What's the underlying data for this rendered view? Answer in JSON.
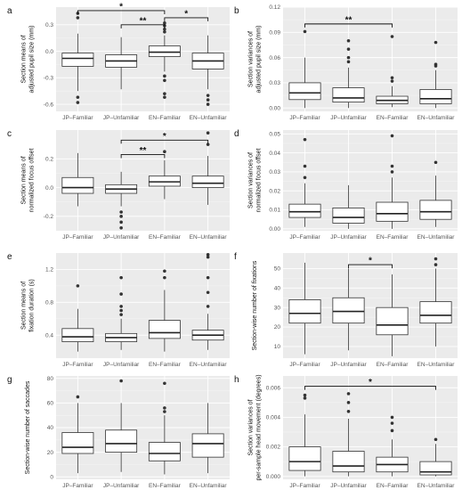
{
  "chart_data": [
    {
      "type": "boxplot",
      "panel_label": "a",
      "ylabel": "Section means of\nadjusted pupil size (mm)",
      "categories": [
        "JP–Familiar",
        "JP–Unfamiliar",
        "EN–Familiar",
        "EN–Unfamiliar"
      ],
      "ylim": [
        -0.68,
        0.5
      ],
      "yticks": [
        -0.6,
        -0.3,
        0.0,
        0.3
      ],
      "ytick_labels": [
        "-0.6",
        "-0.3",
        "0.0",
        "0.3"
      ],
      "boxes": [
        {
          "min": -0.45,
          "q1": -0.17,
          "median": -0.08,
          "q3": -0.02,
          "max": 0.2,
          "outliers": [
            0.38,
            0.43,
            -0.52,
            -0.58
          ]
        },
        {
          "min": -0.43,
          "q1": -0.18,
          "median": -0.11,
          "q3": -0.04,
          "max": 0.16,
          "outliers": []
        },
        {
          "min": -0.23,
          "q1": -0.06,
          "median": -0.01,
          "q3": 0.06,
          "max": 0.18,
          "outliers": [
            0.22,
            0.25,
            0.29,
            0.32,
            -0.28,
            -0.33,
            -0.48,
            -0.52
          ]
        },
        {
          "min": -0.43,
          "q1": -0.2,
          "median": -0.11,
          "q3": -0.02,
          "max": 0.18,
          "outliers": [
            -0.5,
            -0.55,
            -0.6
          ]
        }
      ],
      "significance": [
        {
          "from": 0,
          "to": 2,
          "label": "*",
          "y": 0.46
        },
        {
          "from": 1,
          "to": 2,
          "label": "**",
          "y": 0.3
        },
        {
          "from": 2,
          "to": 3,
          "label": "*",
          "y": 0.38
        }
      ]
    },
    {
      "type": "boxplot",
      "panel_label": "b",
      "ylabel": "Section variances of\nadjusted pupil size (mm)",
      "categories": [
        "JP–Familiar",
        "JP–Unfamiliar",
        "EN–Familiar",
        "EN–Unfamiliar"
      ],
      "ylim": [
        -0.004,
        0.12
      ],
      "yticks": [
        0.0,
        0.03,
        0.06,
        0.09,
        0.12
      ],
      "ytick_labels": [
        "0.00",
        "0.03",
        "0.06",
        "0.09",
        "0.12"
      ],
      "boxes": [
        {
          "min": 0.0,
          "q1": 0.01,
          "median": 0.018,
          "q3": 0.03,
          "max": 0.06,
          "outliers": [
            0.091
          ]
        },
        {
          "min": 0.0,
          "q1": 0.007,
          "median": 0.012,
          "q3": 0.024,
          "max": 0.048,
          "outliers": [
            0.055,
            0.06,
            0.07,
            0.08
          ]
        },
        {
          "min": 0.001,
          "q1": 0.005,
          "median": 0.009,
          "q3": 0.014,
          "max": 0.026,
          "outliers": [
            0.032,
            0.036,
            0.085
          ]
        },
        {
          "min": 0.0,
          "q1": 0.005,
          "median": 0.011,
          "q3": 0.022,
          "max": 0.045,
          "outliers": [
            0.05,
            0.052,
            0.078
          ]
        }
      ],
      "significance": [
        {
          "from": 0,
          "to": 2,
          "label": "**",
          "y": 0.1
        }
      ]
    },
    {
      "type": "boxplot",
      "panel_label": "c",
      "ylabel": "Section means of\nnormalized focus offset",
      "categories": [
        "JP–Familiar",
        "JP–Unfamiliar",
        "EN–Familiar",
        "EN–Unfamiliar"
      ],
      "ylim": [
        -0.3,
        0.4
      ],
      "yticks": [
        -0.2,
        0.0,
        0.2
      ],
      "ytick_labels": [
        "-0.2",
        "0.0",
        "0.2"
      ],
      "boxes": [
        {
          "min": -0.13,
          "q1": -0.04,
          "median": 0.0,
          "q3": 0.07,
          "max": 0.24,
          "outliers": []
        },
        {
          "min": -0.13,
          "q1": -0.04,
          "median": -0.01,
          "q3": 0.02,
          "max": 0.11,
          "outliers": [
            -0.17,
            -0.2,
            -0.24,
            -0.28
          ]
        },
        {
          "min": -0.08,
          "q1": 0.01,
          "median": 0.04,
          "q3": 0.08,
          "max": 0.19,
          "outliers": [
            0.25
          ]
        },
        {
          "min": -0.12,
          "q1": 0.0,
          "median": 0.03,
          "q3": 0.08,
          "max": 0.22,
          "outliers": [
            0.3,
            0.38
          ]
        }
      ],
      "significance": [
        {
          "from": 1,
          "to": 3,
          "label": "*",
          "y": 0.33
        },
        {
          "from": 1,
          "to": 2,
          "label": "**",
          "y": 0.23
        }
      ]
    },
    {
      "type": "boxplot",
      "panel_label": "d",
      "ylabel": "Section variances of\nnormalized focus offset",
      "categories": [
        "JP–Familiar",
        "JP–Unfamiliar",
        "EN–Familiar",
        "EN–Unfamiliar"
      ],
      "ylim": [
        -0.001,
        0.052
      ],
      "yticks": [
        0.0,
        0.01,
        0.02,
        0.03,
        0.04,
        0.05
      ],
      "ytick_labels": [
        "0.00",
        "0.01",
        "0.02",
        "0.03",
        "0.04",
        "0.05"
      ],
      "boxes": [
        {
          "min": 0.001,
          "q1": 0.006,
          "median": 0.009,
          "q3": 0.013,
          "max": 0.024,
          "outliers": [
            0.027,
            0.033,
            0.047
          ]
        },
        {
          "min": 0.0,
          "q1": 0.003,
          "median": 0.006,
          "q3": 0.011,
          "max": 0.023,
          "outliers": []
        },
        {
          "min": 0.0,
          "q1": 0.004,
          "median": 0.008,
          "q3": 0.014,
          "max": 0.027,
          "outliers": [
            0.03,
            0.033,
            0.049
          ]
        },
        {
          "min": 0.001,
          "q1": 0.005,
          "median": 0.009,
          "q3": 0.015,
          "max": 0.028,
          "outliers": [
            0.035
          ]
        }
      ],
      "significance": []
    },
    {
      "type": "boxplot",
      "panel_label": "e",
      "ylabel": "Section means of\nfixation duration (s)",
      "categories": [
        "JP–Familiar",
        "JP–Unfamiliar",
        "EN–Familiar",
        "EN–Unfamiliar"
      ],
      "ylim": [
        0.12,
        1.4
      ],
      "yticks": [
        0.4,
        0.8,
        1.2
      ],
      "ytick_labels": [
        "0.4",
        "0.8",
        "1.2"
      ],
      "boxes": [
        {
          "min": 0.2,
          "q1": 0.32,
          "median": 0.38,
          "q3": 0.48,
          "max": 0.72,
          "outliers": [
            1.0
          ]
        },
        {
          "min": 0.22,
          "q1": 0.32,
          "median": 0.37,
          "q3": 0.42,
          "max": 0.6,
          "outliers": [
            0.65,
            0.7,
            0.75,
            0.9,
            1.1
          ]
        },
        {
          "min": 0.2,
          "q1": 0.36,
          "median": 0.43,
          "q3": 0.58,
          "max": 0.95,
          "outliers": [
            1.1,
            1.18
          ]
        },
        {
          "min": 0.22,
          "q1": 0.34,
          "median": 0.4,
          "q3": 0.46,
          "max": 0.66,
          "outliers": [
            0.75,
            0.92,
            1.1,
            1.35,
            1.38
          ]
        }
      ],
      "significance": []
    },
    {
      "type": "boxplot",
      "panel_label": "f",
      "ylabel": "Section-wise number of fixations",
      "categories": [
        "JP–Familiar",
        "JP–Unfamiliar",
        "EN–Familiar",
        "EN–Unfamiliar"
      ],
      "ylim": [
        4,
        58
      ],
      "yticks": [
        10,
        20,
        30,
        40,
        50
      ],
      "ytick_labels": [
        "10",
        "20",
        "30",
        "40",
        "50"
      ],
      "boxes": [
        {
          "min": 6,
          "q1": 22,
          "median": 27,
          "q3": 34,
          "max": 53,
          "outliers": []
        },
        {
          "min": 8,
          "q1": 22,
          "median": 28,
          "q3": 35,
          "max": 50,
          "outliers": []
        },
        {
          "min": 5,
          "q1": 16,
          "median": 21,
          "q3": 30,
          "max": 47,
          "outliers": []
        },
        {
          "min": 10,
          "q1": 22,
          "median": 26,
          "q3": 33,
          "max": 50,
          "outliers": [
            52,
            55
          ]
        }
      ],
      "significance": [
        {
          "from": 1,
          "to": 2,
          "label": "*",
          "y": 52
        }
      ]
    },
    {
      "type": "boxplot",
      "panel_label": "g",
      "ylabel": "Section-wise number of saccades",
      "categories": [
        "JP–Familiar",
        "JP–Unfamiliar",
        "EN–Familiar",
        "EN–Unfamiliar"
      ],
      "ylim": [
        -2,
        82
      ],
      "yticks": [
        0,
        20,
        40,
        60,
        80
      ],
      "ytick_labels": [
        "0",
        "20",
        "40",
        "60",
        "80"
      ],
      "boxes": [
        {
          "min": 3,
          "q1": 19,
          "median": 24,
          "q3": 36,
          "max": 60,
          "outliers": [
            65
          ]
        },
        {
          "min": 4,
          "q1": 20,
          "median": 27,
          "q3": 38,
          "max": 60,
          "outliers": [
            78
          ]
        },
        {
          "min": 2,
          "q1": 13,
          "median": 19,
          "q3": 28,
          "max": 50,
          "outliers": [
            53,
            56,
            76
          ]
        },
        {
          "min": 3,
          "q1": 16,
          "median": 27,
          "q3": 35,
          "max": 60,
          "outliers": []
        }
      ],
      "significance": []
    },
    {
      "type": "boxplot",
      "panel_label": "h",
      "ylabel": "Section variances of\nper-sample head movement (degrees)",
      "categories": [
        "JP–Familiar",
        "JP–Unfamiliar",
        "EN–Familiar",
        "EN–Unfamiliar"
      ],
      "ylim": [
        -0.0002,
        0.0068
      ],
      "yticks": [
        0.0,
        0.002,
        0.004,
        0.006
      ],
      "ytick_labels": [
        "0.000",
        "0.002",
        "0.004",
        "0.006"
      ],
      "boxes": [
        {
          "min": 0.0,
          "q1": 0.0004,
          "median": 0.001,
          "q3": 0.002,
          "max": 0.0042,
          "outliers": [
            0.0053,
            0.0055
          ]
        },
        {
          "min": 0.0,
          "q1": 0.0003,
          "median": 0.0007,
          "q3": 0.0017,
          "max": 0.0039,
          "outliers": [
            0.0044,
            0.005,
            0.0056
          ]
        },
        {
          "min": 0.0,
          "q1": 0.0003,
          "median": 0.0008,
          "q3": 0.0013,
          "max": 0.0025,
          "outliers": [
            0.0031,
            0.0036,
            0.004
          ]
        },
        {
          "min": 0.0,
          "q1": 0.0001,
          "median": 0.0003,
          "q3": 0.001,
          "max": 0.0022,
          "outliers": [
            0.0025
          ]
        }
      ],
      "significance": [
        {
          "from": 0,
          "to": 3,
          "label": "*",
          "y": 0.0061
        }
      ]
    }
  ]
}
